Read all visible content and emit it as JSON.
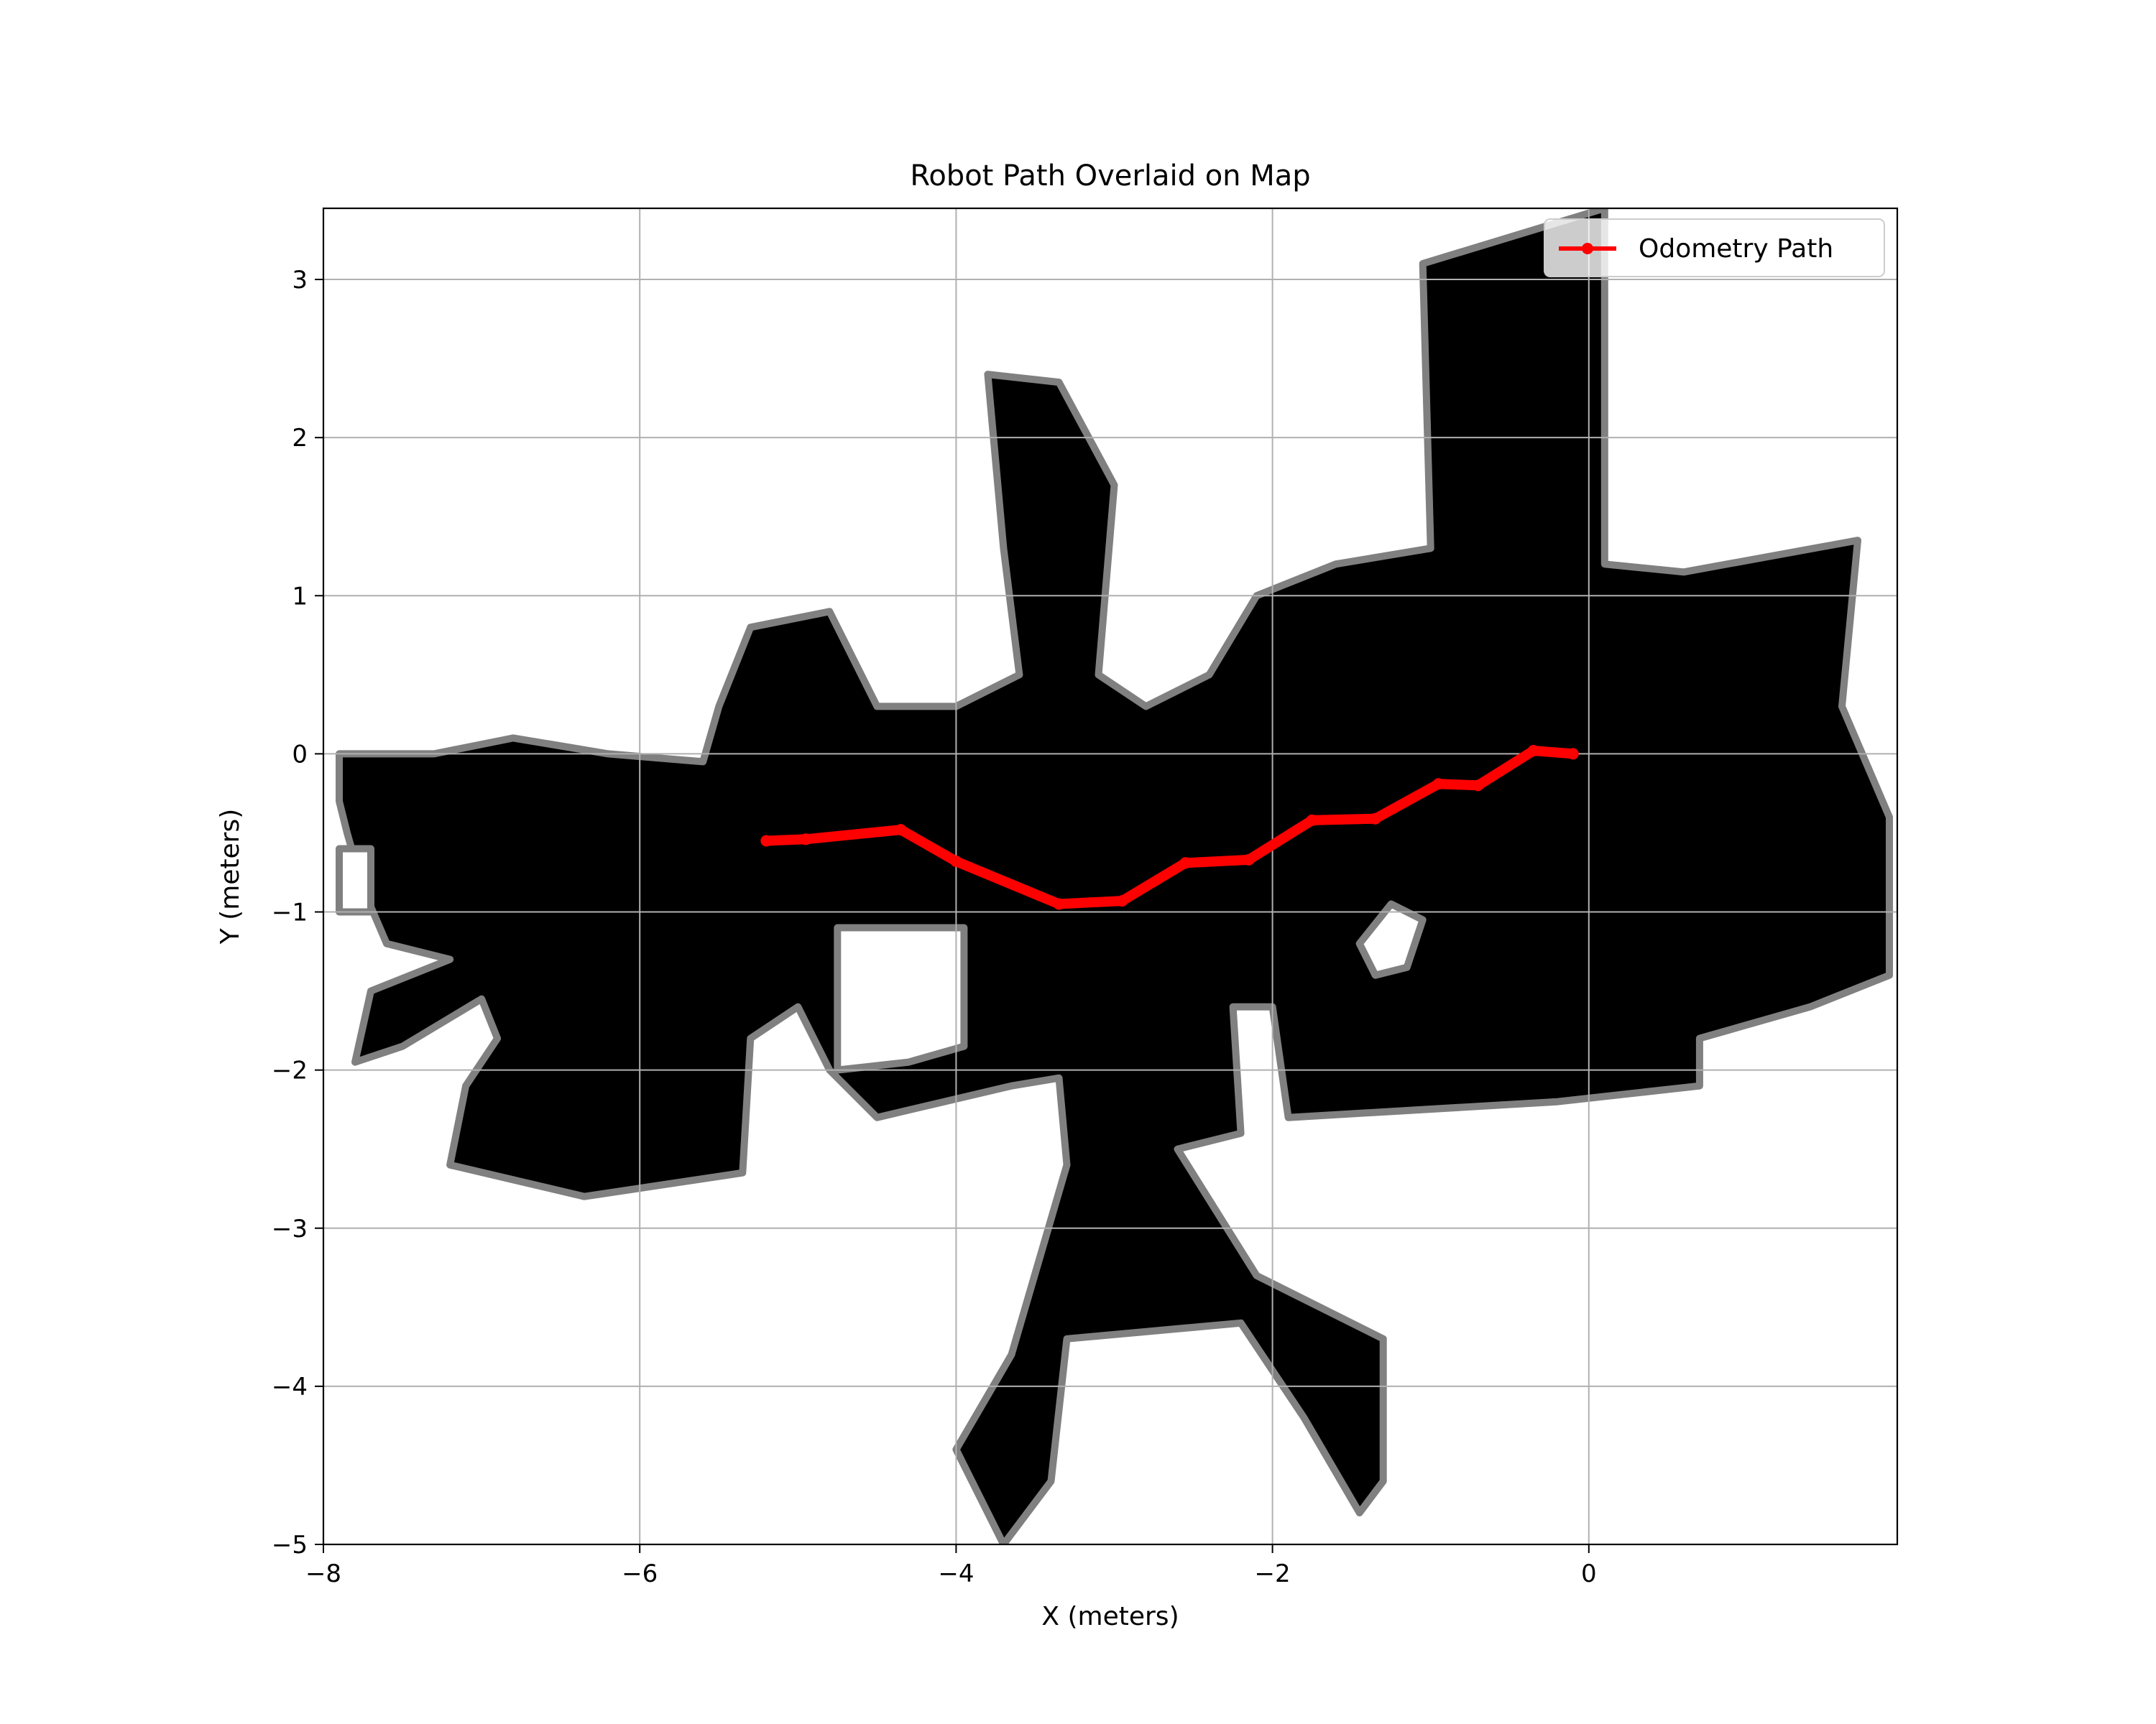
{
  "chart_data": {
    "type": "line",
    "title": "Robot Path Overlaid on Map",
    "xlabel": "X (meters)",
    "ylabel": "Y (meters)",
    "xlim": [
      -8,
      1.95
    ],
    "ylim": [
      -5,
      3.45
    ],
    "xticks": [
      -8,
      -6,
      -4,
      -2,
      0
    ],
    "yticks": [
      -5,
      -4,
      -3,
      -2,
      -1,
      0,
      1,
      2,
      3
    ],
    "xtick_labels": [
      "−8",
      "−6",
      "−4",
      "−2",
      "0"
    ],
    "ytick_labels": [
      "−5",
      "−4",
      "−3",
      "−2",
      "−1",
      "0",
      "1",
      "2",
      "3"
    ],
    "grid": true,
    "legend": {
      "entries": [
        "Odometry Path"
      ],
      "placement": "top-right"
    },
    "background_map": {
      "description_colors": {
        "occupied": "#000000",
        "unknown": "#808080",
        "free": "#ffffff"
      },
      "regions": [
        [
          [
            -7.9,
            0.0
          ],
          [
            -7.3,
            0.0
          ],
          [
            -6.8,
            0.1
          ],
          [
            -6.2,
            0.0
          ],
          [
            -5.6,
            -0.05
          ],
          [
            -5.5,
            0.3
          ],
          [
            -5.3,
            0.8
          ],
          [
            -4.8,
            0.9
          ],
          [
            -4.5,
            0.3
          ],
          [
            -4.0,
            0.3
          ],
          [
            -3.6,
            0.5
          ],
          [
            -3.7,
            1.3
          ],
          [
            -3.8,
            2.4
          ],
          [
            -3.35,
            2.35
          ],
          [
            -3.0,
            1.7
          ],
          [
            -3.1,
            0.5
          ],
          [
            -2.8,
            0.3
          ],
          [
            -2.4,
            0.5
          ],
          [
            -2.1,
            1.0
          ],
          [
            -1.6,
            1.2
          ],
          [
            -1.0,
            1.3
          ],
          [
            -1.05,
            3.1
          ],
          [
            0.1,
            3.45
          ],
          [
            0.1,
            1.2
          ],
          [
            0.6,
            1.15
          ],
          [
            1.7,
            1.35
          ],
          [
            1.6,
            0.3
          ],
          [
            1.9,
            -0.4
          ],
          [
            1.9,
            -1.4
          ],
          [
            1.4,
            -1.6
          ],
          [
            0.7,
            -1.8
          ],
          [
            0.7,
            -2.1
          ],
          [
            -0.2,
            -2.2
          ],
          [
            -1.9,
            -2.3
          ],
          [
            -2.0,
            -1.6
          ],
          [
            -2.25,
            -1.6
          ],
          [
            -2.2,
            -2.4
          ],
          [
            -2.6,
            -2.5
          ],
          [
            -2.1,
            -3.3
          ],
          [
            -1.3,
            -3.7
          ],
          [
            -1.3,
            -4.6
          ],
          [
            -1.45,
            -4.8
          ],
          [
            -1.8,
            -4.2
          ],
          [
            -2.2,
            -3.6
          ],
          [
            -3.3,
            -3.7
          ],
          [
            -3.4,
            -4.6
          ],
          [
            -3.7,
            -5.0
          ],
          [
            -4.0,
            -4.4
          ],
          [
            -3.65,
            -3.8
          ],
          [
            -3.3,
            -2.6
          ],
          [
            -3.35,
            -2.05
          ],
          [
            -3.65,
            -2.1
          ],
          [
            -4.5,
            -2.3
          ],
          [
            -4.8,
            -2.0
          ],
          [
            -5.0,
            -1.6
          ],
          [
            -5.3,
            -1.8
          ],
          [
            -5.35,
            -2.65
          ],
          [
            -6.35,
            -2.8
          ],
          [
            -7.2,
            -2.6
          ],
          [
            -7.1,
            -2.1
          ],
          [
            -6.9,
            -1.8
          ],
          [
            -7.0,
            -1.55
          ],
          [
            -7.5,
            -1.85
          ],
          [
            -7.8,
            -1.95
          ],
          [
            -7.7,
            -1.5
          ],
          [
            -7.2,
            -1.3
          ],
          [
            -7.6,
            -1.2
          ],
          [
            -7.75,
            -0.85
          ],
          [
            -7.85,
            -0.5
          ],
          [
            -7.9,
            -0.3
          ]
        ]
      ],
      "holes": [
        [
          [
            -4.75,
            -1.1
          ],
          [
            -3.95,
            -1.1
          ],
          [
            -3.95,
            -1.85
          ],
          [
            -4.3,
            -1.95
          ],
          [
            -4.75,
            -2.0
          ]
        ],
        [
          [
            -1.45,
            -1.2
          ],
          [
            -1.25,
            -0.95
          ],
          [
            -1.05,
            -1.05
          ],
          [
            -1.15,
            -1.35
          ],
          [
            -1.35,
            -1.4
          ]
        ],
        [
          [
            -7.9,
            -0.6
          ],
          [
            -7.7,
            -0.6
          ],
          [
            -7.7,
            -1.0
          ],
          [
            -7.9,
            -1.0
          ]
        ]
      ]
    },
    "series": [
      {
        "name": "Odometry Path",
        "color": "#ff0000",
        "x": [
          -5.2,
          -4.95,
          -4.35,
          -4.0,
          -3.35,
          -2.95,
          -2.55,
          -2.15,
          -1.75,
          -1.35,
          -0.95,
          -0.7,
          -0.35,
          -0.1
        ],
        "y": [
          -0.55,
          -0.54,
          -0.48,
          -0.68,
          -0.95,
          -0.93,
          -0.69,
          -0.67,
          -0.42,
          -0.41,
          -0.19,
          -0.2,
          0.02,
          0.0
        ]
      }
    ]
  }
}
